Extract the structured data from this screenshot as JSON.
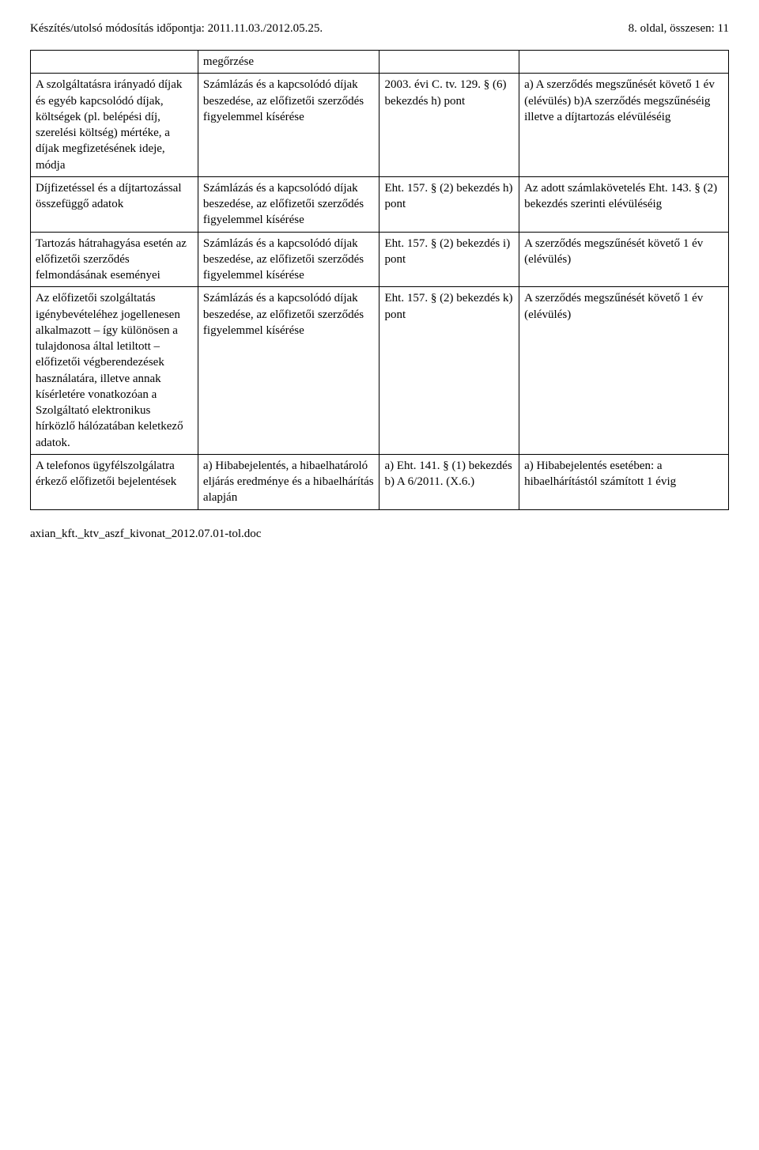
{
  "header": {
    "left": "Készítés/utolsó módosítás időpontja: 2011.11.03./2012.05.25.",
    "right": "8. oldal, összesen: 11"
  },
  "table": {
    "row0": {
      "c1": "",
      "c2": "megőrzése",
      "c3": "",
      "c4": ""
    },
    "row1": {
      "c1": "A szolgáltatásra irányadó díjak és egyéb kapcsolódó díjak, költségek (pl. belépési díj, szerelési költség) mértéke, a díjak megfizetésének ideje, módja",
      "c2": "Számlázás és a kapcsolódó díjak beszedése, az előfizetői szerződés figyelemmel kísérése",
      "c3": "2003. évi C. tv. 129. § (6) bekezdés h) pont",
      "c4": "a) A szerződés megszűnését követő 1 év (elévülés)\nb)A szerződés megszűnéséig illetve a díjtartozás elévüléséig"
    },
    "row2": {
      "c1": "Díjfizetéssel és a díjtartozással összefüggő adatok",
      "c2": "Számlázás és a kapcsolódó díjak beszedése, az előfizetői szerződés figyelemmel kísérése",
      "c3": "Eht. 157. § (2) bekezdés h) pont",
      "c4": "Az adott számlakövetelés Eht. 143. § (2) bekezdés szerinti elévüléséig"
    },
    "row3": {
      "c1": "Tartozás hátrahagyása esetén az előfizetői szerződés felmondásának eseményei",
      "c2": "Számlázás és a kapcsolódó díjak beszedése, az előfizetői szerződés figyelemmel kísérése",
      "c3": "Eht. 157. § (2) bekezdés i) pont",
      "c4": "A szerződés megszűnését követő 1 év (elévülés)"
    },
    "row4": {
      "c1": "Az előfizetői szolgáltatás igénybevételéhez jogellenesen alkalmazott – így különösen a tulajdonosa által letiltott – előfizetői végberendezések használatára, illetve annak kísérletére vonatkozóan a Szolgáltató elektronikus hírközlő hálózatában keletkező adatok.",
      "c2": "Számlázás és a kapcsolódó díjak beszedése, az előfizetői szerződés figyelemmel kísérése",
      "c3": "Eht. 157. § (2) bekezdés k) pont",
      "c4": "A szerződés megszűnését követő 1 év (elévülés)"
    },
    "row5": {
      "c1": "A telefonos ügyfélszolgálatra érkező előfizetői bejelentések",
      "c2": "a) Hibabejelentés, a hibaelhatároló eljárás eredménye és a hibaelhárítás alapján",
      "c3": "a) Eht. 141. § (1) bekezdés\nb) A 6/2011. (X.6.)",
      "c4": "a) Hibabejelentés esetében: a hibaelhárítástól számított 1 évig"
    }
  },
  "footer": {
    "text": "axian_kft._ktv_aszf_kivonat_2012.07.01-tol.doc"
  }
}
